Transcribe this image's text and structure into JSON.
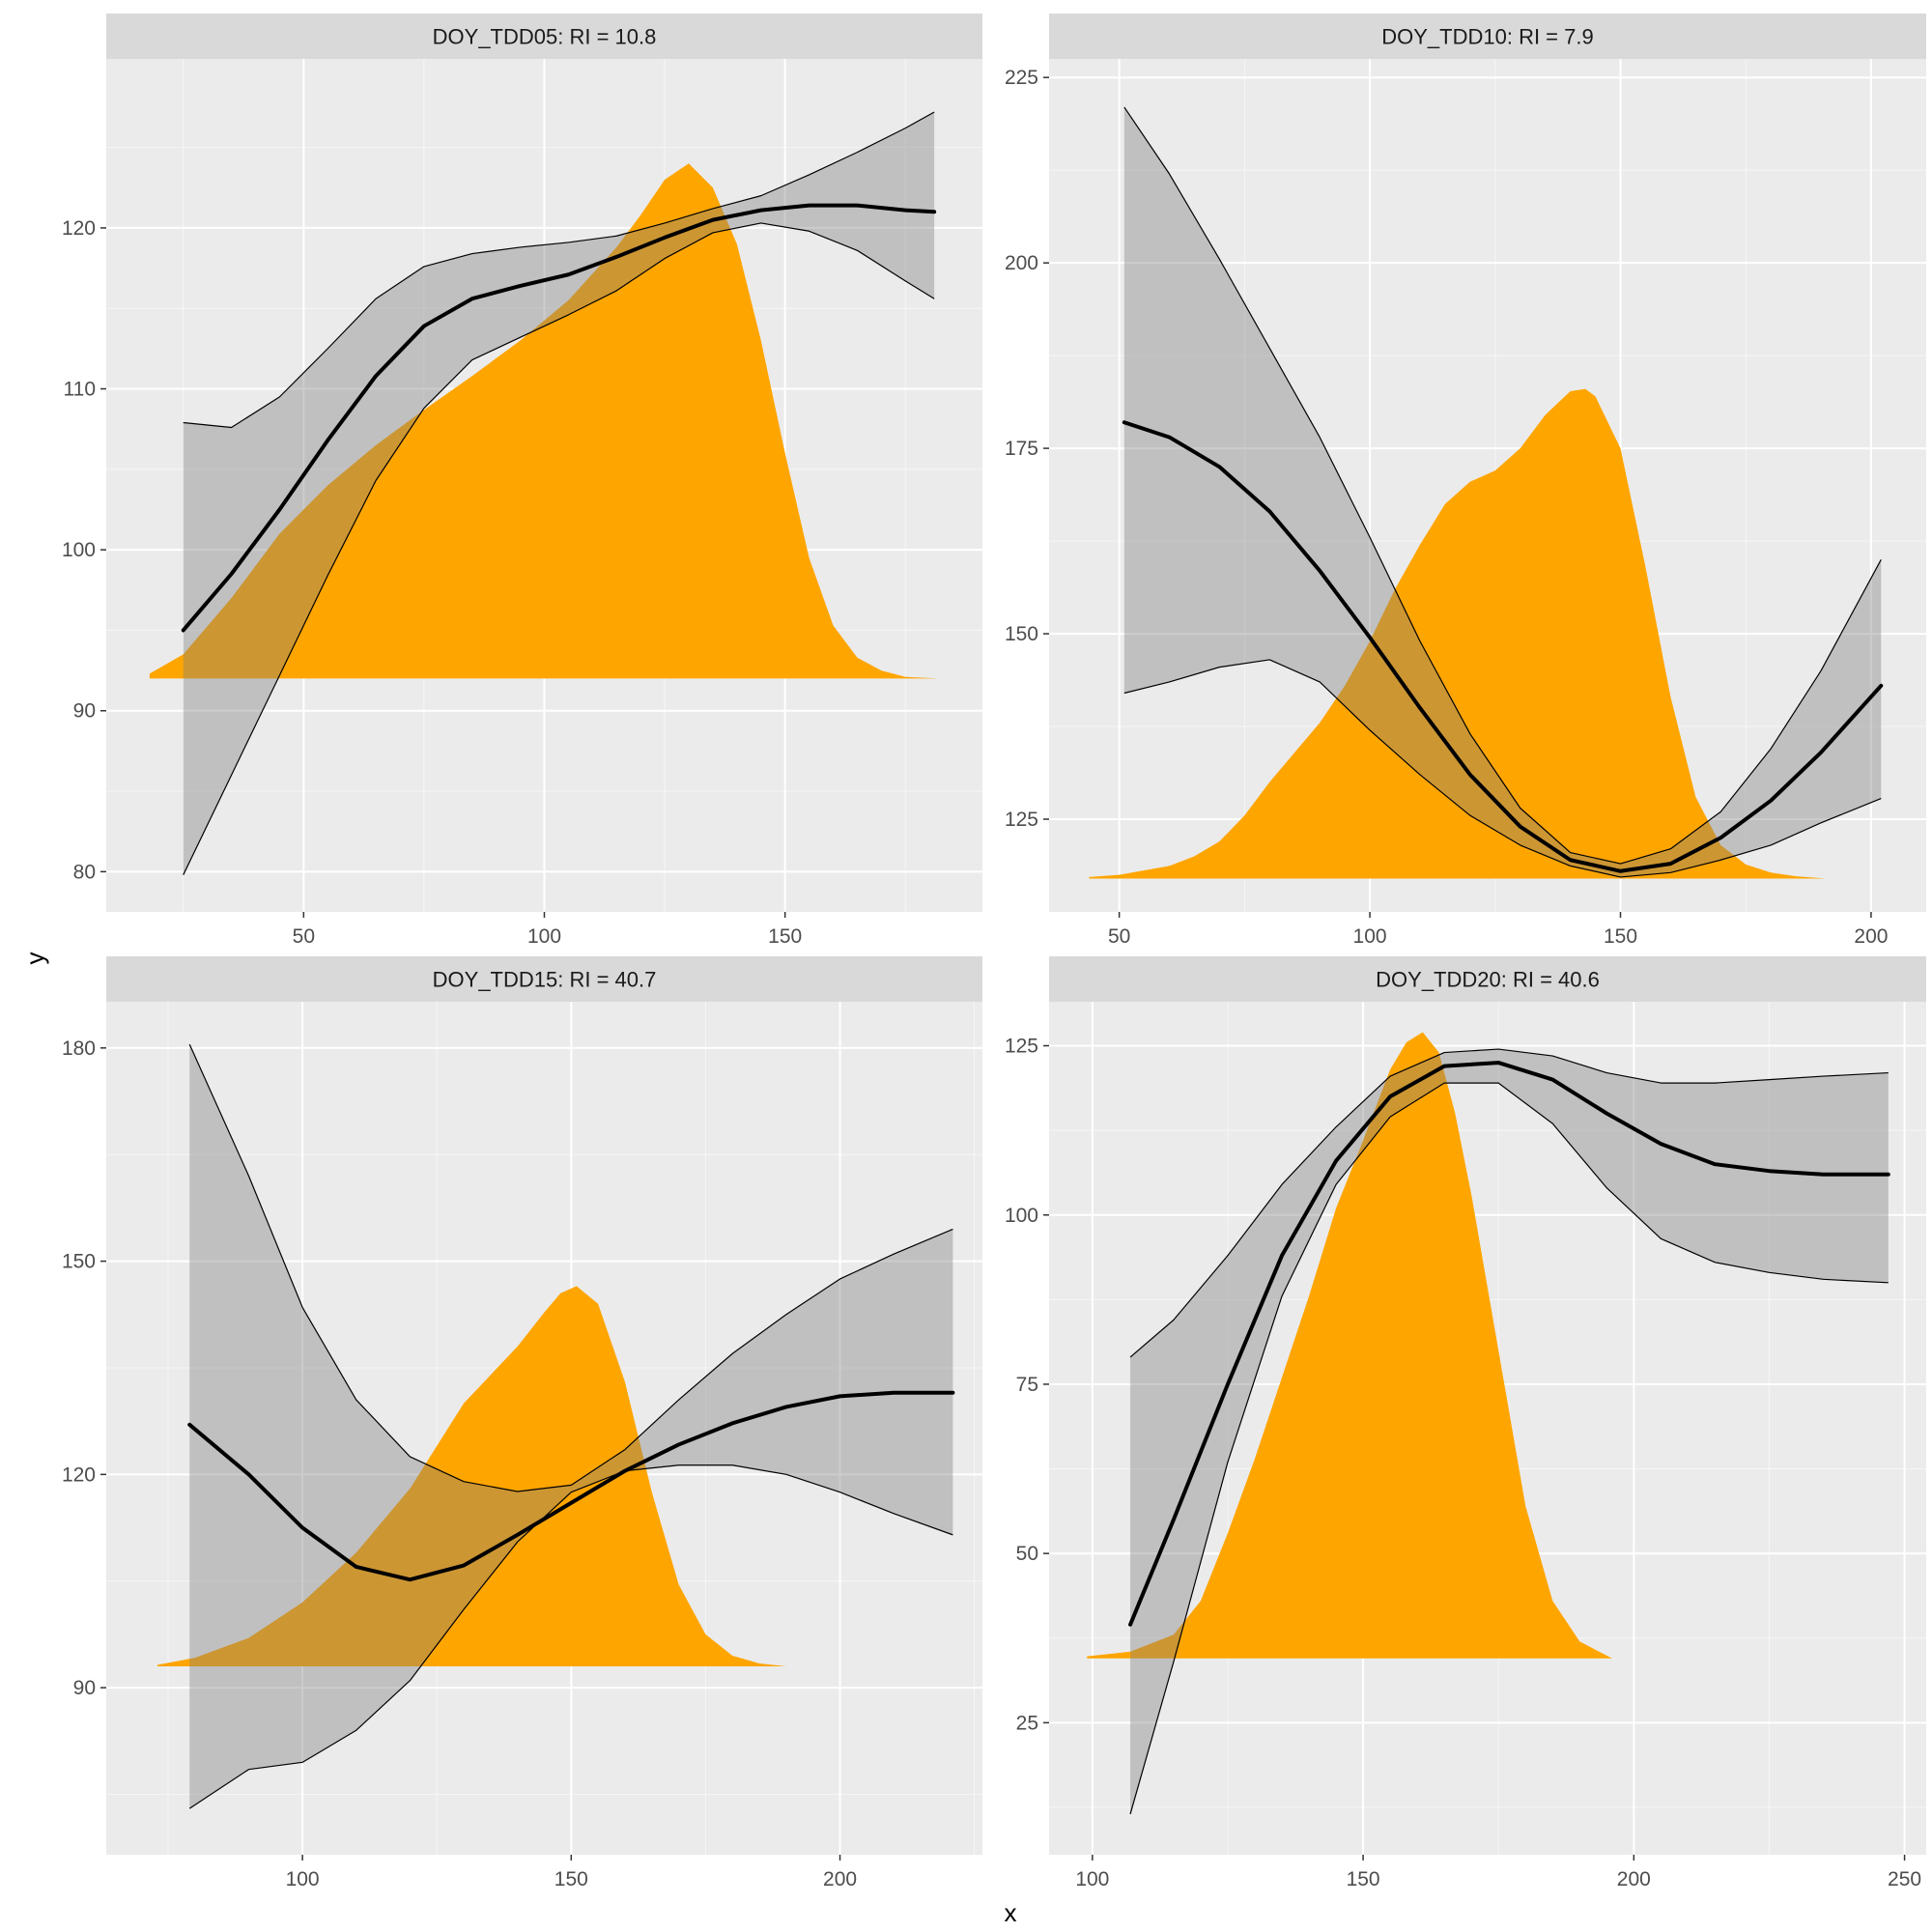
{
  "figure": {
    "xlabel": "x",
    "ylabel": "y"
  },
  "colors": {
    "panel_bg": "#ebebeb",
    "strip_bg": "#d9d9d9",
    "grid_major": "#ffffff",
    "density_fill": "#ffa500",
    "ribbon_fill": "#7f7f7f",
    "line": "#000000",
    "tick_text": "#4d4d4d"
  },
  "chart_data": [
    {
      "type": "area",
      "title": "DOY_TDD05: RI = 10.8",
      "xlim": [
        9,
        191
      ],
      "ylim": [
        77.5,
        130.5
      ],
      "xticks": [
        50,
        100,
        150
      ],
      "yticks": [
        80,
        90,
        100,
        110,
        120
      ],
      "density": {
        "baseline": 92,
        "x": [
          18,
          25,
          35,
          45,
          55,
          65,
          75,
          85,
          95,
          105,
          115,
          120,
          125,
          130,
          135,
          140,
          145,
          150,
          155,
          160,
          165,
          170,
          175,
          182
        ],
        "y": [
          92.3,
          93.5,
          97,
          101,
          104,
          106.5,
          108.7,
          110.8,
          113,
          115.5,
          118.8,
          120.8,
          123,
          124,
          122.5,
          119,
          113,
          106,
          99.5,
          95.3,
          93.3,
          92.5,
          92.1,
          92
        ]
      },
      "fit": {
        "x": [
          25,
          35,
          45,
          55,
          65,
          75,
          85,
          95,
          105,
          115,
          125,
          135,
          145,
          155,
          165,
          175,
          181
        ],
        "y": [
          95,
          98.5,
          102.5,
          106.8,
          110.8,
          113.9,
          115.6,
          116.4,
          117.1,
          118.2,
          119.4,
          120.5,
          121.1,
          121.4,
          121.4,
          121.1,
          121
        ],
        "lower": [
          79.8,
          86,
          92.2,
          98.4,
          104.3,
          108.8,
          111.8,
          113.2,
          114.6,
          116.1,
          118.1,
          119.7,
          120.3,
          119.8,
          118.6,
          116.7,
          115.6
        ],
        "upper": [
          107.9,
          107.6,
          109.5,
          112.5,
          115.6,
          117.6,
          118.4,
          118.8,
          119.1,
          119.5,
          120.3,
          121.2,
          122,
          123.3,
          124.7,
          126.2,
          127.2
        ]
      }
    },
    {
      "type": "area",
      "title": "DOY_TDD10: RI = 7.9",
      "xlim": [
        36,
        211
      ],
      "ylim": [
        112.5,
        227.5
      ],
      "xticks": [
        50,
        100,
        150,
        200
      ],
      "yticks": [
        125,
        150,
        175,
        200,
        225
      ],
      "density": {
        "baseline": 117,
        "x": [
          44,
          50,
          60,
          65,
          70,
          75,
          80,
          85,
          90,
          95,
          100,
          105,
          110,
          115,
          120,
          125,
          130,
          135,
          140,
          143,
          145,
          150,
          155,
          160,
          165,
          170,
          175,
          180,
          185,
          191
        ],
        "y": [
          117.2,
          117.5,
          118.7,
          120,
          122,
          125.5,
          130,
          134,
          138,
          143,
          149,
          156,
          162,
          167.5,
          170.5,
          172,
          175,
          179.5,
          182.7,
          183,
          182,
          175,
          159,
          141.5,
          128,
          121.5,
          118.9,
          117.8,
          117.3,
          117
        ]
      },
      "fit": {
        "x": [
          51,
          60,
          70,
          80,
          90,
          100,
          110,
          120,
          130,
          140,
          150,
          160,
          170,
          180,
          190,
          202
        ],
        "y": [
          178.5,
          176.5,
          172.5,
          166.5,
          158.5,
          149.5,
          140,
          131,
          124,
          119.5,
          118,
          119,
          122.5,
          127.5,
          134,
          143
        ],
        "lower": [
          142,
          143.5,
          145.5,
          146.5,
          143.5,
          137,
          131,
          125.5,
          121.5,
          118.7,
          117.2,
          117.8,
          119.5,
          121.5,
          124.5,
          127.8
        ],
        "upper": [
          221,
          212,
          200.5,
          188.5,
          176.5,
          163,
          149,
          136.5,
          126.5,
          120.5,
          119,
          121,
          126,
          134.5,
          145,
          160
        ]
      }
    },
    {
      "type": "area",
      "title": "DOY_TDD15: RI = 40.7",
      "xlim": [
        63.5,
        226.5
      ],
      "ylim": [
        66.5,
        186.5
      ],
      "xticks": [
        100,
        150,
        200
      ],
      "yticks": [
        90,
        120,
        150,
        180
      ],
      "density": {
        "baseline": 93,
        "x": [
          73,
          80,
          90,
          100,
          110,
          120,
          125,
          130,
          135,
          140,
          145,
          148,
          151,
          155,
          160,
          165,
          170,
          175,
          180,
          185,
          190
        ],
        "y": [
          93.2,
          94.2,
          97,
          102,
          109,
          118,
          124,
          130,
          134,
          138,
          142.8,
          145.5,
          146.5,
          144,
          133,
          117.5,
          104.5,
          97.5,
          94.5,
          93.4,
          93
        ]
      },
      "fit": {
        "x": [
          79,
          90,
          100,
          110,
          120,
          130,
          140,
          150,
          160,
          170,
          180,
          190,
          200,
          210,
          221
        ],
        "y": [
          127,
          120,
          112.5,
          107,
          105.2,
          107.2,
          111.5,
          116,
          120.5,
          124.2,
          127.2,
          129.5,
          131,
          131.5,
          131.5
        ],
        "lower": [
          73,
          78.5,
          79.5,
          84,
          91,
          101,
          110.5,
          117.5,
          120.5,
          121.3,
          121.3,
          120,
          117.5,
          114.5,
          111.5
        ],
        "upper": [
          180.5,
          162,
          143.5,
          130.5,
          122.5,
          119,
          117.6,
          118.5,
          123.5,
          130.5,
          137,
          142.5,
          147.5,
          151,
          154.5
        ]
      }
    },
    {
      "type": "area",
      "title": "DOY_TDD20: RI = 40.6",
      "xlim": [
        92,
        254
      ],
      "ylim": [
        5.5,
        131.5
      ],
      "xticks": [
        100,
        150,
        200,
        250
      ],
      "yticks": [
        25,
        50,
        75,
        100,
        125
      ],
      "density": {
        "baseline": 34.5,
        "x": [
          99,
          107,
          115,
          120,
          125,
          130,
          135,
          140,
          145,
          150,
          155,
          158,
          161,
          164,
          167,
          170,
          175,
          180,
          185,
          190,
          196
        ],
        "y": [
          34.8,
          35.5,
          38,
          43,
          53,
          64,
          76,
          88,
          101,
          111,
          121.5,
          125.5,
          127,
          124,
          115,
          103,
          80,
          57,
          43,
          37,
          34.5
        ]
      },
      "fit": {
        "x": [
          107,
          115,
          125,
          135,
          145,
          155,
          165,
          175,
          185,
          195,
          205,
          215,
          225,
          235,
          247
        ],
        "y": [
          39.5,
          55,
          75,
          94,
          108,
          117.5,
          122,
          122.5,
          120,
          115,
          110.5,
          107.5,
          106.5,
          106,
          106
        ],
        "lower": [
          11.5,
          34,
          63.5,
          88,
          104.5,
          114.5,
          119.5,
          119.5,
          113.5,
          104,
          96.5,
          93,
          91.5,
          90.5,
          90
        ],
        "upper": [
          79,
          84.5,
          94,
          104.5,
          113,
          120.5,
          124,
          124.5,
          123.5,
          121,
          119.5,
          119.5,
          120,
          120.5,
          121
        ]
      }
    }
  ]
}
